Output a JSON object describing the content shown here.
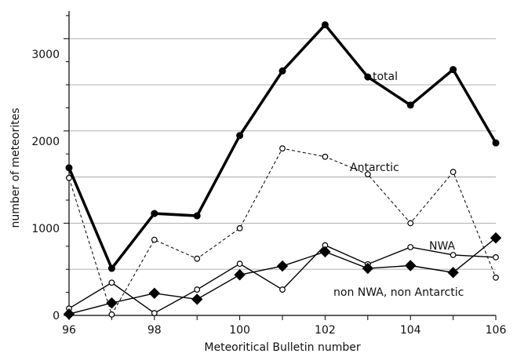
{
  "chart_data": {
    "type": "line",
    "xlabel": "Meteoritical Bulletin number",
    "ylabel": "number of meteorites",
    "xlim": [
      96,
      106
    ],
    "ylim": [
      0,
      3300
    ],
    "x_ticks": [
      "96",
      "98",
      "100",
      "102",
      "104",
      "106"
    ],
    "y_ticks": [
      "0",
      "1000",
      "2000",
      "3000"
    ],
    "grid": "horizontal gridlines every 500",
    "legend": "labels placed next to series lines",
    "x": [
      96,
      97,
      98,
      99,
      100,
      101,
      102,
      103,
      104,
      105,
      106
    ],
    "series": [
      {
        "name": "total",
        "style": "thick solid line, filled circle markers",
        "color": "#000000",
        "values": [
          1600,
          510,
          1105,
          1080,
          1950,
          2650,
          3150,
          2585,
          2280,
          2665,
          1870
        ]
      },
      {
        "name": "Antarctic",
        "style": "dashed line, open circle markers",
        "color": "#000000",
        "values": [
          1490,
          10,
          820,
          615,
          945,
          1810,
          1720,
          1530,
          1000,
          1555,
          410
        ]
      },
      {
        "name": "NWA",
        "style": "solid line, open circle markers",
        "color": "#000000",
        "values": [
          75,
          355,
          25,
          280,
          560,
          280,
          760,
          555,
          740,
          655,
          630
        ]
      },
      {
        "name": "non NWA, non Antarctic",
        "style": "solid line, filled diamond markers",
        "color": "#000000",
        "values": [
          15,
          135,
          240,
          175,
          440,
          535,
          690,
          510,
          540,
          465,
          840
        ]
      }
    ]
  }
}
